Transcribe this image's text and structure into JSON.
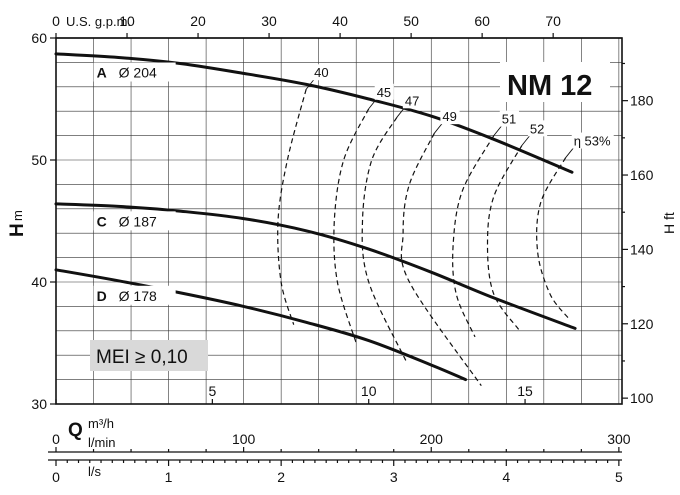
{
  "chart_data": {
    "type": "line",
    "title": "NM 12",
    "x_primary": {
      "label": "Q",
      "unit": "m³/h",
      "range": [
        0,
        18.1
      ],
      "ticks": [
        0,
        5,
        10,
        15
      ]
    },
    "x_secondary_axes": [
      {
        "unit": "U.S. g.p.m.",
        "position": "top",
        "ticks": [
          0,
          10,
          20,
          30,
          40,
          50,
          60,
          70
        ],
        "per_m3h": 4.4029
      },
      {
        "unit": "l/min",
        "position": "bottom",
        "ticks": [
          0,
          100,
          200,
          300
        ],
        "per_m3h": 16.6667
      },
      {
        "unit": "l/s",
        "position": "bottom",
        "ticks": [
          0,
          1,
          2,
          3,
          4,
          5
        ],
        "per_m3h": 0.27778
      }
    ],
    "y_left": {
      "label": "H",
      "unit": "m",
      "range": [
        30,
        60
      ],
      "ticks": [
        30,
        40,
        50,
        60
      ]
    },
    "y_right": {
      "label": "H ft",
      "ticks": [
        100,
        120,
        140,
        160,
        180
      ],
      "per_m": 3.28084
    },
    "grid": true,
    "series": [
      {
        "name": "A",
        "diameter_label": "Ø 204",
        "x": [
          0,
          2,
          4,
          6,
          8,
          10,
          12,
          14,
          16.5
        ],
        "y": [
          58.7,
          58.4,
          57.9,
          57.1,
          56.2,
          55.0,
          53.6,
          51.7,
          49.0
        ]
      },
      {
        "name": "C",
        "diameter_label": "Ø 187",
        "x": [
          0,
          2,
          4,
          6,
          8,
          10,
          12,
          14,
          16.6
        ],
        "y": [
          46.4,
          46.2,
          45.8,
          45.2,
          44.2,
          42.7,
          40.8,
          38.7,
          36.2
        ]
      },
      {
        "name": "D",
        "diameter_label": "Ø 178",
        "x": [
          0,
          2,
          4,
          6,
          8,
          10,
          12,
          13.1
        ],
        "y": [
          41.0,
          40.1,
          39.1,
          38.0,
          36.7,
          35.2,
          33.2,
          32.0
        ]
      }
    ],
    "efficiency_curves": [
      {
        "label": "40",
        "x": [
          8.0,
          7.4,
          7.1,
          7.2,
          7.6
        ],
        "y": [
          55.8,
          50.0,
          45.0,
          40.0,
          36.5
        ]
      },
      {
        "label": "45",
        "x": [
          10.0,
          9.2,
          8.9,
          9.0,
          9.6
        ],
        "y": [
          54.2,
          50.0,
          45.0,
          40.0,
          35.0
        ]
      },
      {
        "label": "47",
        "x": [
          10.9,
          10.1,
          9.8,
          10.0,
          11.2
        ],
        "y": [
          53.5,
          50.0,
          45.0,
          40.0,
          33.5
        ]
      },
      {
        "label": "49",
        "x": [
          12.1,
          11.3,
          11.1,
          11.3,
          13.6
        ],
        "y": [
          52.2,
          48.0,
          44.0,
          40.0,
          31.5
        ]
      },
      {
        "label": "51",
        "x": [
          14.0,
          13.0,
          12.7,
          12.8,
          13.4
        ],
        "y": [
          52.0,
          47.5,
          43.0,
          39.0,
          35.5
        ]
      },
      {
        "label": "52",
        "x": [
          14.9,
          14.0,
          13.8,
          14.0,
          14.8
        ],
        "y": [
          51.2,
          47.0,
          43.0,
          39.0,
          36.1
        ]
      },
      {
        "label": "η 53%",
        "x": [
          16.3,
          15.5,
          15.4,
          15.8,
          16.4
        ],
        "y": [
          50.2,
          46.5,
          42.5,
          39.0,
          37.0
        ]
      }
    ],
    "annotation": "MEI ≥ 0,10"
  }
}
